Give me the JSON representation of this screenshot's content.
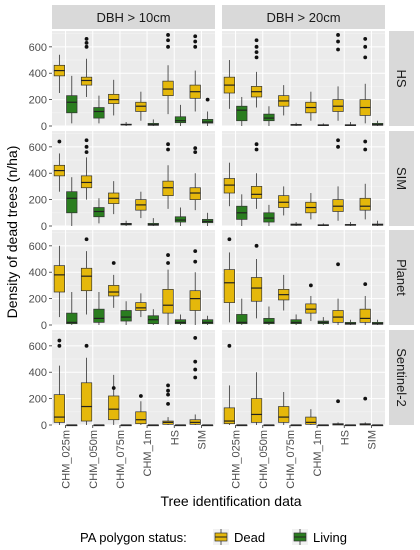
{
  "chart_data": {
    "type": "boxplot",
    "title": "",
    "xlabel": "Tree identification data",
    "ylabel": "Density of dead trees (n/ha)",
    "ylim": [
      0,
      720
    ],
    "yticks": [
      0,
      200,
      400,
      600
    ],
    "grid": true,
    "categories": [
      "CHM_025m",
      "CHM_050m",
      "CHM_075m",
      "CHM_1m",
      "HS",
      "SIM"
    ],
    "columns": [
      "DBH > 10cm",
      "DBH > 20cm"
    ],
    "rows": [
      "HS",
      "SIM",
      "Planet",
      "Sentinel-2"
    ],
    "legend": {
      "title": "PA polygon status:",
      "position": "bottom",
      "entries": [
        {
          "name": "Dead",
          "color": "#e5b80b"
        },
        {
          "name": "Living",
          "color": "#2a7d1f"
        }
      ]
    },
    "series": [
      {
        "name": "Dead",
        "color": "#e5b80b"
      },
      {
        "name": "Living",
        "color": "#2a7d1f"
      }
    ],
    "panels": [
      {
        "row": "HS",
        "column": "DBH > 10cm",
        "boxes": {
          "Dead": [
            [
              250,
              380,
              420,
              460,
              540
            ],
            [
              220,
              310,
              345,
              370,
              510
            ],
            [
              80,
              170,
              200,
              240,
              350
            ],
            [
              40,
              110,
              150,
              180,
              260
            ],
            [
              90,
              230,
              280,
              340,
              460
            ],
            [
              110,
              210,
              260,
              310,
              420
            ]
          ],
          "Living": [
            [
              20,
              100,
              180,
              230,
              380
            ],
            [
              20,
              60,
              110,
              140,
              230
            ],
            [
              0,
              8,
              10,
              14,
              30
            ],
            [
              0,
              5,
              10,
              20,
              50
            ],
            [
              0,
              25,
              40,
              70,
              160
            ],
            [
              0,
              22,
              30,
              50,
              110
            ]
          ]
        },
        "outliers": {
          "Dead": [
            [],
            [
              600,
              630,
              660
            ],
            [],
            [],
            [
              600,
              650,
              690
            ],
            [
              600,
              640,
              680
            ]
          ],
          "Living": [
            [],
            [],
            [],
            [],
            [],
            [
              200
            ]
          ]
        }
      },
      {
        "row": "HS",
        "column": "DBH > 20cm",
        "boxes": {
          "Dead": [
            [
              130,
              250,
              310,
              370,
              500
            ],
            [
              140,
              220,
              260,
              300,
              410
            ],
            [
              80,
              150,
              190,
              230,
              310
            ],
            [
              40,
              100,
              140,
              180,
              260
            ],
            [
              40,
              110,
              150,
              200,
              300
            ],
            [
              20,
              80,
              140,
              200,
              320
            ]
          ],
          "Living": [
            [
              0,
              40,
              120,
              150,
              220
            ],
            [
              0,
              40,
              60,
              90,
              150
            ],
            [
              0,
              5,
              8,
              12,
              25
            ],
            [
              0,
              3,
              6,
              10,
              20
            ],
            [
              0,
              3,
              6,
              10,
              30
            ],
            [
              0,
              5,
              10,
              20,
              40
            ]
          ]
        },
        "outliers": {
          "Dead": [
            [],
            [
              520,
              560,
              600,
              650
            ],
            [],
            [],
            [
              580,
              640,
              690
            ],
            [
              520,
              600,
              660
            ]
          ],
          "Living": [
            [],
            [],
            [],
            [],
            [],
            []
          ]
        }
      },
      {
        "row": "SIM",
        "column": "DBH > 10cm",
        "boxes": {
          "Dead": [
            [
              260,
              380,
              420,
              460,
              550
            ],
            [
              200,
              290,
              330,
              380,
              520
            ],
            [
              90,
              170,
              210,
              250,
              340
            ],
            [
              60,
              120,
              160,
              200,
              260
            ],
            [
              130,
              230,
              290,
              340,
              460
            ],
            [
              120,
              200,
              250,
              290,
              400
            ]
          ],
          "Living": [
            [
              0,
              100,
              210,
              260,
              370
            ],
            [
              20,
              70,
              110,
              140,
              210
            ],
            [
              0,
              8,
              15,
              20,
              40
            ],
            [
              0,
              5,
              10,
              20,
              60
            ],
            [
              0,
              30,
              45,
              70,
              140
            ],
            [
              0,
              25,
              35,
              50,
              100
            ]
          ]
        },
        "outliers": {
          "Dead": [
            [
              640
            ],
            [
              560,
              600,
              650
            ],
            [],
            [],
            [
              580,
              620
            ],
            [
              560,
              590
            ]
          ],
          "Living": [
            [],
            [],
            [],
            [],
            [],
            []
          ]
        }
      },
      {
        "row": "SIM",
        "column": "DBH > 20cm",
        "boxes": {
          "Dead": [
            [
              150,
              250,
              310,
              360,
              480
            ],
            [
              130,
              210,
              240,
              300,
              400
            ],
            [
              80,
              140,
              180,
              230,
              300
            ],
            [
              50,
              100,
              140,
              180,
              250
            ],
            [
              40,
              110,
              150,
              200,
              300
            ],
            [
              50,
              120,
              150,
              210,
              320
            ]
          ],
          "Living": [
            [
              0,
              50,
              100,
              150,
              240
            ],
            [
              0,
              30,
              60,
              100,
              160
            ],
            [
              0,
              5,
              10,
              15,
              30
            ],
            [
              0,
              3,
              6,
              10,
              20
            ],
            [
              0,
              5,
              8,
              12,
              30
            ],
            [
              0,
              5,
              10,
              15,
              40
            ]
          ]
        },
        "outliers": {
          "Dead": [
            [],
            [
              580,
              620
            ],
            [],
            [],
            [
              600,
              650
            ],
            [
              580,
              640
            ]
          ],
          "Living": [
            [],
            [],
            [],
            [],
            [],
            []
          ]
        }
      },
      {
        "row": "Planet",
        "column": "DBH > 10cm",
        "boxes": {
          "Dead": [
            [
              60,
              250,
              380,
              450,
              600
            ],
            [
              80,
              260,
              370,
              430,
              560
            ],
            [
              130,
              220,
              250,
              300,
              380
            ],
            [
              60,
              110,
              130,
              170,
              240
            ],
            [
              0,
              90,
              150,
              270,
              420
            ],
            [
              0,
              110,
              200,
              260,
              400
            ]
          ],
          "Living": [
            [
              0,
              10,
              20,
              90,
              250
            ],
            [
              0,
              20,
              50,
              120,
              250
            ],
            [
              0,
              30,
              60,
              110,
              180
            ],
            [
              0,
              10,
              40,
              70,
              120
            ],
            [
              0,
              10,
              20,
              40,
              80
            ],
            [
              0,
              10,
              20,
              40,
              70
            ]
          ]
        },
        "outliers": {
          "Dead": [
            [],
            [
              650
            ],
            [
              470
            ],
            [],
            [
              470,
              530
            ],
            [
              480,
              560
            ]
          ],
          "Living": [
            [],
            [],
            [],
            [],
            [],
            []
          ]
        }
      },
      {
        "row": "Planet",
        "column": "DBH > 20cm",
        "boxes": {
          "Dead": [
            [
              20,
              170,
              320,
              420,
              550
            ],
            [
              50,
              180,
              280,
              360,
              500
            ],
            [
              110,
              190,
              230,
              270,
              380
            ],
            [
              30,
              90,
              120,
              160,
              220
            ],
            [
              0,
              20,
              60,
              110,
              200
            ],
            [
              0,
              20,
              50,
              120,
              220
            ]
          ],
          "Living": [
            [
              0,
              10,
              20,
              80,
              200
            ],
            [
              0,
              10,
              20,
              50,
              140
            ],
            [
              0,
              10,
              20,
              40,
              80
            ],
            [
              0,
              10,
              20,
              30,
              60
            ],
            [
              0,
              5,
              10,
              20,
              40
            ],
            [
              0,
              5,
              10,
              20,
              40
            ]
          ]
        },
        "outliers": {
          "Dead": [
            [
              650
            ],
            [
              600
            ],
            [],
            [
              300
            ],
            [
              460
            ],
            [
              310
            ]
          ],
          "Living": [
            [],
            [],
            [],
            [],
            [],
            []
          ]
        }
      },
      {
        "row": "Sentinel-2",
        "column": "DBH > 10cm",
        "boxes": {
          "Dead": [
            [
              0,
              20,
              60,
              230,
              450
            ],
            [
              0,
              30,
              140,
              320,
              510
            ],
            [
              0,
              40,
              120,
              220,
              380
            ],
            [
              0,
              10,
              40,
              100,
              180
            ],
            [
              0,
              5,
              20,
              30,
              60
            ],
            [
              0,
              5,
              20,
              40,
              80
            ]
          ],
          "Living": [
            [
              0,
              0,
              0,
              0,
              0
            ],
            [
              0,
              0,
              0,
              0,
              0
            ],
            [
              0,
              0,
              0,
              0,
              0
            ],
            [
              0,
              0,
              0,
              0,
              0
            ],
            [
              0,
              0,
              0,
              0,
              0
            ],
            [
              0,
              0,
              0,
              0,
              0
            ]
          ]
        },
        "outliers": {
          "Dead": [
            [
              600,
              640
            ],
            [
              600
            ],
            [
              280
            ],
            [
              220
            ],
            [
              160,
              230,
              260,
              300
            ],
            [
              360,
              420,
              480,
              660
            ]
          ],
          "Living": [
            [],
            [],
            [],
            [],
            [],
            []
          ]
        }
      },
      {
        "row": "Sentinel-2",
        "column": "DBH > 20cm",
        "boxes": {
          "Dead": [
            [
              0,
              10,
              30,
              130,
              300
            ],
            [
              0,
              20,
              80,
              200,
              400
            ],
            [
              0,
              20,
              60,
              140,
              250
            ],
            [
              0,
              5,
              20,
              60,
              120
            ],
            [
              0,
              0,
              5,
              10,
              20
            ],
            [
              0,
              0,
              5,
              10,
              20
            ]
          ],
          "Living": [
            [
              0,
              0,
              0,
              0,
              0
            ],
            [
              0,
              0,
              0,
              0,
              0
            ],
            [
              0,
              0,
              0,
              0,
              0
            ],
            [
              0,
              0,
              0,
              0,
              0
            ],
            [
              0,
              0,
              0,
              0,
              0
            ],
            [
              0,
              0,
              0,
              0,
              0
            ]
          ]
        },
        "outliers": {
          "Dead": [
            [
              600
            ],
            [],
            [],
            [],
            [
              180
            ],
            [
              200
            ]
          ],
          "Living": [
            [],
            [],
            [],
            [],
            [],
            []
          ]
        }
      }
    ]
  }
}
